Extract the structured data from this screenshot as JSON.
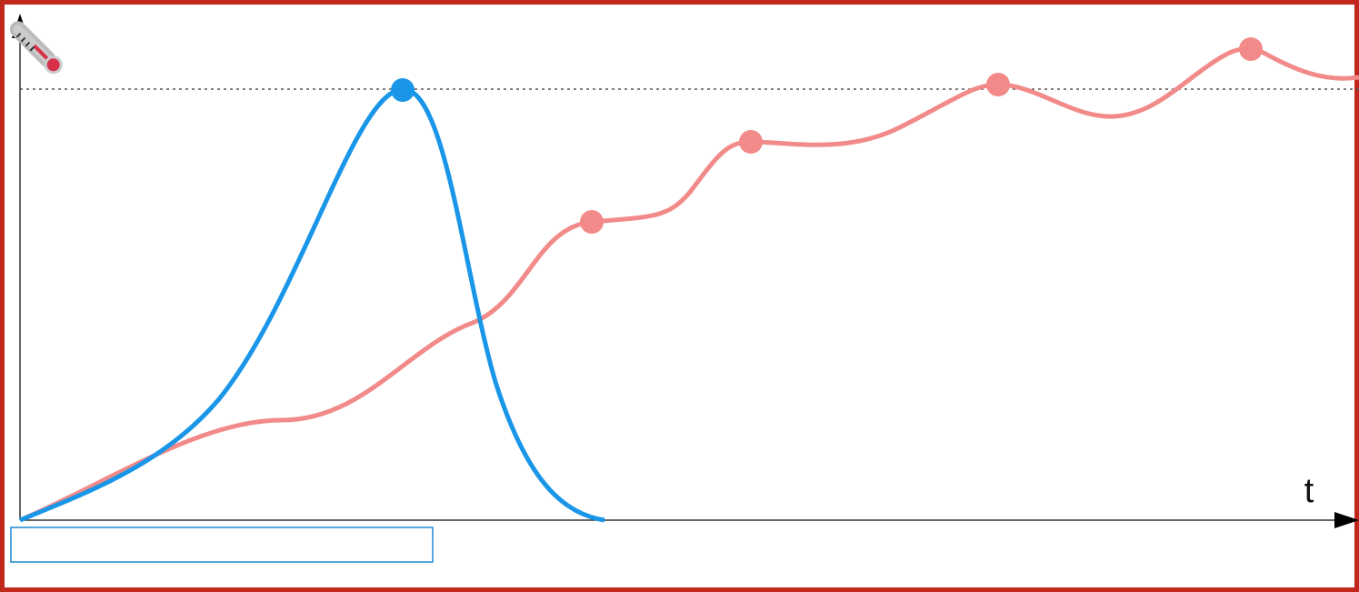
{
  "axis": {
    "x_label": "t"
  }
}
